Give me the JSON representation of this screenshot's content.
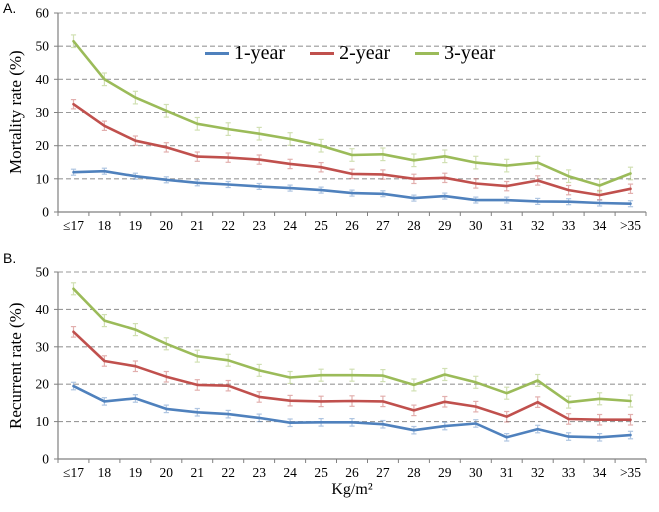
{
  "figure_background": "#FFFFFF",
  "axis_color": "#808080",
  "grid_color": "#999999",
  "chart_data": [
    {
      "type": "line",
      "panel_label": "A.",
      "ylabel": "Mortality rate (%)",
      "xlabel": "Kg/m²",
      "ylim": [
        0,
        60
      ],
      "ytick_step": 10,
      "grid": "horizontal-dashed",
      "legend_position": "inside-top-center",
      "show_legend": true,
      "error_bars": true,
      "categories": [
        "≤17",
        "18",
        "19",
        "20",
        "21",
        "22",
        "23",
        "24",
        "25",
        "26",
        "27",
        "28",
        "29",
        "30",
        "31",
        "32",
        "33",
        "34",
        ">35"
      ],
      "series": [
        {
          "name": "1-year",
          "color": "#4F81BD",
          "error": 0.9,
          "values": [
            12,
            12.3,
            10.8,
            9.7,
            8.8,
            8.3,
            7.7,
            7.2,
            6.6,
            5.7,
            5.5,
            4.2,
            4.8,
            3.6,
            3.6,
            3.2,
            3.1,
            2.7,
            2.5
          ]
        },
        {
          "name": "2-year",
          "color": "#C0504D",
          "error": 1.4,
          "values": [
            32.5,
            26,
            21.5,
            19.5,
            16.7,
            16.4,
            15.8,
            14.5,
            13.5,
            11.5,
            11.3,
            10,
            10.3,
            8.6,
            7.8,
            9.5,
            6.6,
            5.1,
            7
          ]
        },
        {
          "name": "3-year",
          "color": "#9BBB59",
          "error": 1.9,
          "values": [
            51.5,
            40,
            34.5,
            30.5,
            26.6,
            25,
            23.6,
            22,
            20,
            17.2,
            17.4,
            15.6,
            16.8,
            14.9,
            14,
            14.9,
            10.8,
            8,
            11.6
          ]
        }
      ]
    },
    {
      "type": "line",
      "panel_label": "B.",
      "ylabel": "Recurrent rate (%)",
      "xlabel": "Kg/m²",
      "ylim": [
        0,
        50
      ],
      "ytick_step": 10,
      "grid": "horizontal-dashed",
      "legend_position": "none",
      "show_legend": false,
      "error_bars": true,
      "categories": [
        "≤17",
        "18",
        "19",
        "20",
        "21",
        "22",
        "23",
        "24",
        "25",
        "26",
        "27",
        "28",
        "29",
        "30",
        "31",
        "32",
        "33",
        "34",
        ">35"
      ],
      "series": [
        {
          "name": "1-year",
          "color": "#4F81BD",
          "error": 1.0,
          "values": [
            19.5,
            15.4,
            16.2,
            13.4,
            12.5,
            12,
            11,
            9.7,
            9.8,
            9.8,
            9.3,
            7.7,
            8.8,
            9.5,
            5.8,
            8,
            6,
            5.8,
            6.4
          ]
        },
        {
          "name": "2-year",
          "color": "#C0504D",
          "error": 1.4,
          "values": [
            34,
            26.2,
            24.8,
            22,
            19.8,
            19.6,
            16.6,
            15.6,
            15.4,
            15.5,
            15.4,
            13,
            15.3,
            14,
            11.3,
            15.2,
            10.7,
            10.5,
            10.5
          ]
        },
        {
          "name": "3-year",
          "color": "#9BBB59",
          "error": 1.6,
          "values": [
            45.5,
            37,
            34.6,
            30.8,
            27.5,
            26.4,
            23.7,
            21.8,
            22.4,
            22.4,
            22.3,
            19.8,
            22.6,
            20.5,
            17.6,
            21,
            15.2,
            16.1,
            15.5
          ]
        }
      ]
    }
  ]
}
